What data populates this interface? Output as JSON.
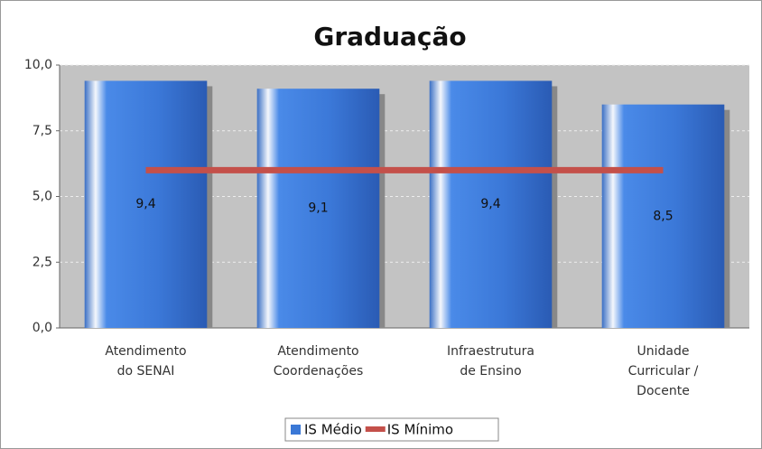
{
  "chart_data": {
    "type": "bar",
    "title": "Graduação",
    "categories": [
      [
        "Atendimento",
        "do SENAI"
      ],
      [
        "Atendimento",
        "Coordenações"
      ],
      [
        "Infraestrutura",
        "de Ensino"
      ],
      [
        "Unidade",
        "Curricular /",
        "Docente"
      ]
    ],
    "series": [
      {
        "name": "IS Médio",
        "type": "bar",
        "color": "#3a78d6",
        "values": [
          9.4,
          9.1,
          9.4,
          8.5
        ],
        "value_labels": [
          "9,4",
          "9,1",
          "9,4",
          "8,5"
        ]
      },
      {
        "name": "IS Mínimo",
        "type": "line",
        "color": "#c4504a",
        "values": [
          6,
          6,
          6,
          6
        ]
      }
    ],
    "ylim": [
      0,
      10
    ],
    "yticks": [
      {
        "value": 0,
        "label": "0,0"
      },
      {
        "value": 2.5,
        "label": "2,5"
      },
      {
        "value": 5,
        "label": "5,0"
      },
      {
        "value": 7.5,
        "label": "7,5"
      },
      {
        "value": 10,
        "label": "10,0"
      }
    ],
    "grid": true,
    "legend": "bottom"
  }
}
